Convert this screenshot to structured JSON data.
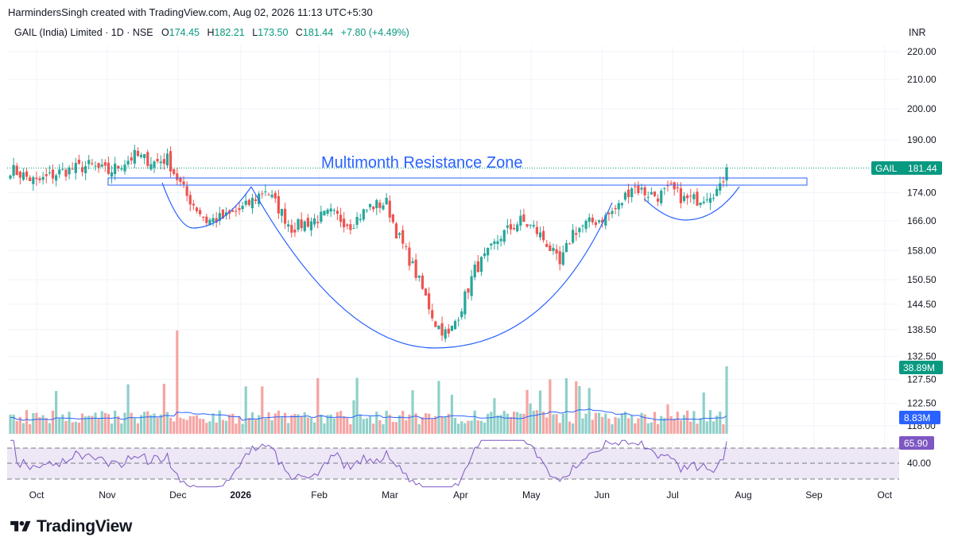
{
  "header": {
    "credit": "HarmindersSingh created with TradingView.com, Aug 02, 2026 11:13 UTC+5:30"
  },
  "symbol": {
    "name": "GAIL (India) Limited · 1D · NSE",
    "o_label": "O",
    "o_value": "174.45",
    "h_label": "H",
    "h_value": "182.21",
    "l_label": "L",
    "l_value": "173.50",
    "c_label": "C",
    "c_value": "181.44",
    "change": "+7.80 (+4.49%)",
    "currency": "INR"
  },
  "colors": {
    "up": "#26a69a",
    "down": "#ef5350",
    "vol_up": "#8fd0c9",
    "vol_down": "#f6a4a2",
    "annotation": "#2962ff",
    "rsi_line": "#7e57c2",
    "rsi_band": "#ede7f6",
    "vol_ma": "#2962ff",
    "last_price_bg": "#089981",
    "vol_tag_bg": "#2962ff",
    "rsi_tag_bg": "#7e57c2"
  },
  "brand": {
    "name": "TradingView",
    "icon": "tradingview-logo-icon"
  },
  "chart_data": {
    "type": "candlestick",
    "price_axis": {
      "ticks": [
        "220.00",
        "210.00",
        "200.00",
        "190.00",
        "174.00",
        "166.00",
        "158.00",
        "150.50",
        "144.50",
        "138.50",
        "132.50",
        "127.50",
        "122.50",
        "118.00"
      ],
      "scale": "log"
    },
    "time_axis": {
      "labels": [
        "Oct",
        "Nov",
        "Dec",
        "2026",
        "Feb",
        "Mar",
        "Apr",
        "May",
        "Jun",
        "Jul",
        "Aug",
        "Sep",
        "Oct"
      ]
    },
    "last_price": {
      "symbol": "GAIL",
      "value": "181.44"
    },
    "volume_tag": "38.89M",
    "volume_ma_tag": "8.83M",
    "rsi_tag": "65.90",
    "rsi_axis_label": "40.00",
    "annotation": "Multimonth Resistance Zone",
    "resistance_zone": {
      "low": 176.5,
      "high": 179.0
    },
    "candles_note": "approximate daily OHLC read from chart",
    "anchors": [
      [
        0,
        181
      ],
      [
        8,
        177
      ],
      [
        15,
        180
      ],
      [
        24,
        182
      ],
      [
        30,
        180
      ],
      [
        38,
        185
      ],
      [
        44,
        183
      ],
      [
        48,
        184
      ],
      [
        50,
        180
      ],
      [
        54,
        173
      ],
      [
        60,
        166
      ],
      [
        66,
        167
      ],
      [
        72,
        170
      ],
      [
        78,
        175
      ],
      [
        86,
        164
      ],
      [
        92,
        166
      ],
      [
        98,
        168
      ],
      [
        104,
        165
      ],
      [
        110,
        170
      ],
      [
        115,
        171
      ],
      [
        118,
        163
      ],
      [
        124,
        152
      ],
      [
        130,
        140
      ],
      [
        134,
        137
      ],
      [
        138,
        144
      ],
      [
        142,
        153
      ],
      [
        146,
        157
      ],
      [
        150,
        162
      ],
      [
        156,
        166
      ],
      [
        160,
        164
      ],
      [
        164,
        160
      ],
      [
        168,
        154
      ],
      [
        172,
        163
      ],
      [
        176,
        165
      ],
      [
        182,
        167
      ],
      [
        186,
        170
      ],
      [
        190,
        176
      ],
      [
        194,
        174
      ],
      [
        198,
        173
      ],
      [
        202,
        175
      ],
      [
        206,
        172
      ],
      [
        210,
        172
      ],
      [
        214,
        174
      ],
      [
        217,
        175
      ],
      [
        219,
        181.44
      ]
    ]
  }
}
